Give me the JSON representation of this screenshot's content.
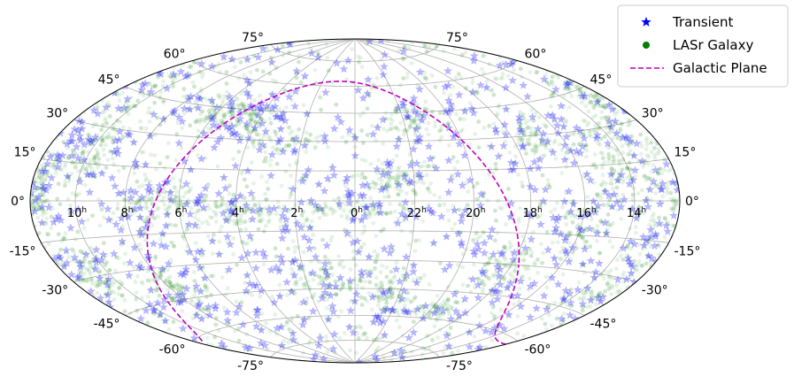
{
  "chart_data": {
    "type": "scatter",
    "projection": "aitoff-hammer (all-sky)",
    "grid": true,
    "legend_position": "top-right",
    "legend": [
      {
        "label": "Transient",
        "marker": "star",
        "color": "#0000ff"
      },
      {
        "label": "LASr Galaxy",
        "marker": "circle",
        "color": "#008000"
      },
      {
        "label": "Galactic Plane",
        "marker": "dashed-line",
        "color": "#c000c0"
      }
    ],
    "lat_tick_labels_left": [
      "75°",
      "60°",
      "45°",
      "30°",
      "15°",
      "0°",
      "-15°",
      "-30°",
      "-45°",
      "-60°",
      "-75°"
    ],
    "lat_tick_labels_right": [
      "75°",
      "60°",
      "45°",
      "30°",
      "15°",
      "0°",
      "-15°",
      "-30°",
      "-45°",
      "-60°",
      "-75°"
    ],
    "ra_tick_labels": [
      {
        "hour": "10",
        "unit": "h"
      },
      {
        "hour": "8",
        "unit": "h"
      },
      {
        "hour": "6",
        "unit": "h"
      },
      {
        "hour": "4",
        "unit": "h"
      },
      {
        "hour": "2",
        "unit": "h"
      },
      {
        "hour": "0",
        "unit": "h"
      },
      {
        "hour": "22",
        "unit": "h"
      },
      {
        "hour": "20",
        "unit": "h"
      },
      {
        "hour": "18",
        "unit": "h"
      },
      {
        "hour": "16",
        "unit": "h"
      },
      {
        "hour": "14",
        "unit": "h"
      }
    ],
    "series": [
      {
        "name": "Transient",
        "color": "#0000ff",
        "alpha": 0.3
      },
      {
        "name": "LASr Galaxy",
        "color": "#008000",
        "alpha": 0.08
      }
    ],
    "galactic_plane_color": "#c000c0"
  }
}
